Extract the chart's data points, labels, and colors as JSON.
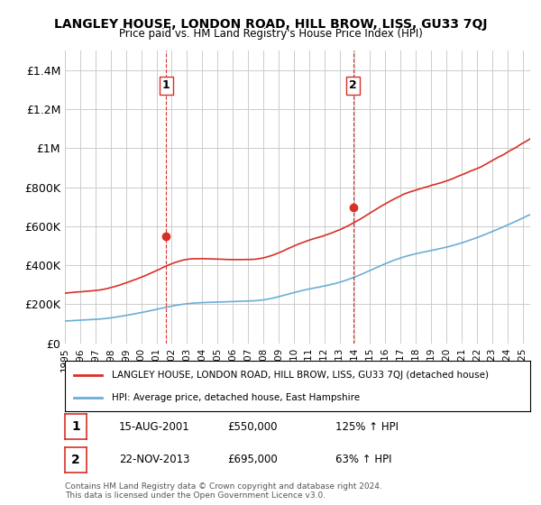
{
  "title": "LANGLEY HOUSE, LONDON ROAD, HILL BROW, LISS, GU33 7QJ",
  "subtitle": "Price paid vs. HM Land Registry's House Price Index (HPI)",
  "hpi_color": "#6baed6",
  "price_color": "#d73027",
  "vline_color": "#d73027",
  "background_color": "#ffffff",
  "grid_color": "#cccccc",
  "ylim": [
    0,
    1500000
  ],
  "yticks": [
    0,
    200000,
    400000,
    600000,
    800000,
    1000000,
    1200000,
    1400000
  ],
  "ytick_labels": [
    "£0",
    "£200K",
    "£400K",
    "£600K",
    "£800K",
    "£1M",
    "£1.2M",
    "£1.4M"
  ],
  "sale1_date": 2001.622,
  "sale1_price": 550000,
  "sale1_label": "1",
  "sale2_date": 2013.895,
  "sale2_price": 695000,
  "sale2_label": "2",
  "legend_line1": "LANGLEY HOUSE, LONDON ROAD, HILL BROW, LISS, GU33 7QJ (detached house)",
  "legend_line2": "HPI: Average price, detached house, East Hampshire",
  "table_row1": [
    "1",
    "15-AUG-2001",
    "£550,000",
    "125% ↑ HPI"
  ],
  "table_row2": [
    "2",
    "22-NOV-2013",
    "£695,000",
    "63% ↑ HPI"
  ],
  "footnote": "Contains HM Land Registry data © Crown copyright and database right 2024.\nThis data is licensed under the Open Government Licence v3.0.",
  "xmin": 1995,
  "xmax": 2025.5
}
